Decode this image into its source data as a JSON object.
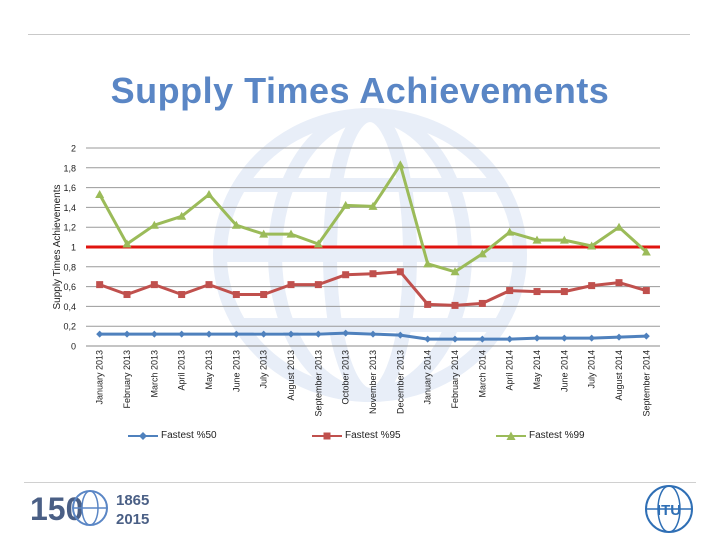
{
  "slide": {
    "title": "Supply Times Achievements",
    "logo_years_top": "1865",
    "logo_years_bottom": "2015",
    "logo_number": "150",
    "logo_itu_text": "ITU"
  },
  "colors": {
    "title": "#5a86c5",
    "series_50": "#4f81bd",
    "series_95": "#c0504d",
    "series_99": "#9bbb59",
    "reference_line": "#e0140f",
    "grid": "#9a9a9a"
  },
  "chart_data": {
    "type": "line",
    "title": "",
    "ylabel": "Supply Times Achievements",
    "xlabel": "",
    "ylim": [
      0,
      2
    ],
    "ytick_labels": [
      "0",
      "0,2",
      "0,4",
      "0,6",
      "0,8",
      "1",
      "1,2",
      "1,4",
      "1,6",
      "1,8",
      "2"
    ],
    "grid": true,
    "legend_position": "bottom",
    "categories": [
      "January 2013",
      "February 2013",
      "March 2013",
      "April 2013",
      "May 2013",
      "June 2013",
      "July 2013",
      "August 2013",
      "September 2013",
      "October 2013",
      "November 2013",
      "December 2013",
      "January 2014",
      "February 2014",
      "March 2014",
      "April 2014",
      "May 2014",
      "June 2014",
      "July 2014",
      "August 2014",
      "September 2014"
    ],
    "series": [
      {
        "name": "Fastest %50",
        "color": "#4f81bd",
        "marker": "diamond",
        "values": [
          0.12,
          0.12,
          0.12,
          0.12,
          0.12,
          0.12,
          0.12,
          0.12,
          0.12,
          0.13,
          0.12,
          0.11,
          0.07,
          0.07,
          0.07,
          0.07,
          0.08,
          0.08,
          0.08,
          0.09,
          0.1
        ]
      },
      {
        "name": "Fastest %95",
        "color": "#c0504d",
        "marker": "square",
        "values": [
          0.62,
          0.52,
          0.62,
          0.52,
          0.62,
          0.52,
          0.52,
          0.62,
          0.62,
          0.72,
          0.73,
          0.75,
          0.42,
          0.41,
          0.43,
          0.56,
          0.55,
          0.55,
          0.61,
          0.64,
          0.56
        ]
      },
      {
        "name": "Fastest %99",
        "color": "#9bbb59",
        "marker": "triangle",
        "values": [
          1.53,
          1.03,
          1.22,
          1.31,
          1.53,
          1.22,
          1.13,
          1.13,
          1.03,
          1.42,
          1.41,
          1.83,
          0.83,
          0.75,
          0.93,
          1.15,
          1.07,
          1.07,
          1.01,
          1.2,
          0.95
        ]
      }
    ],
    "reference_line": {
      "y": 1,
      "color": "#e0140f"
    }
  }
}
